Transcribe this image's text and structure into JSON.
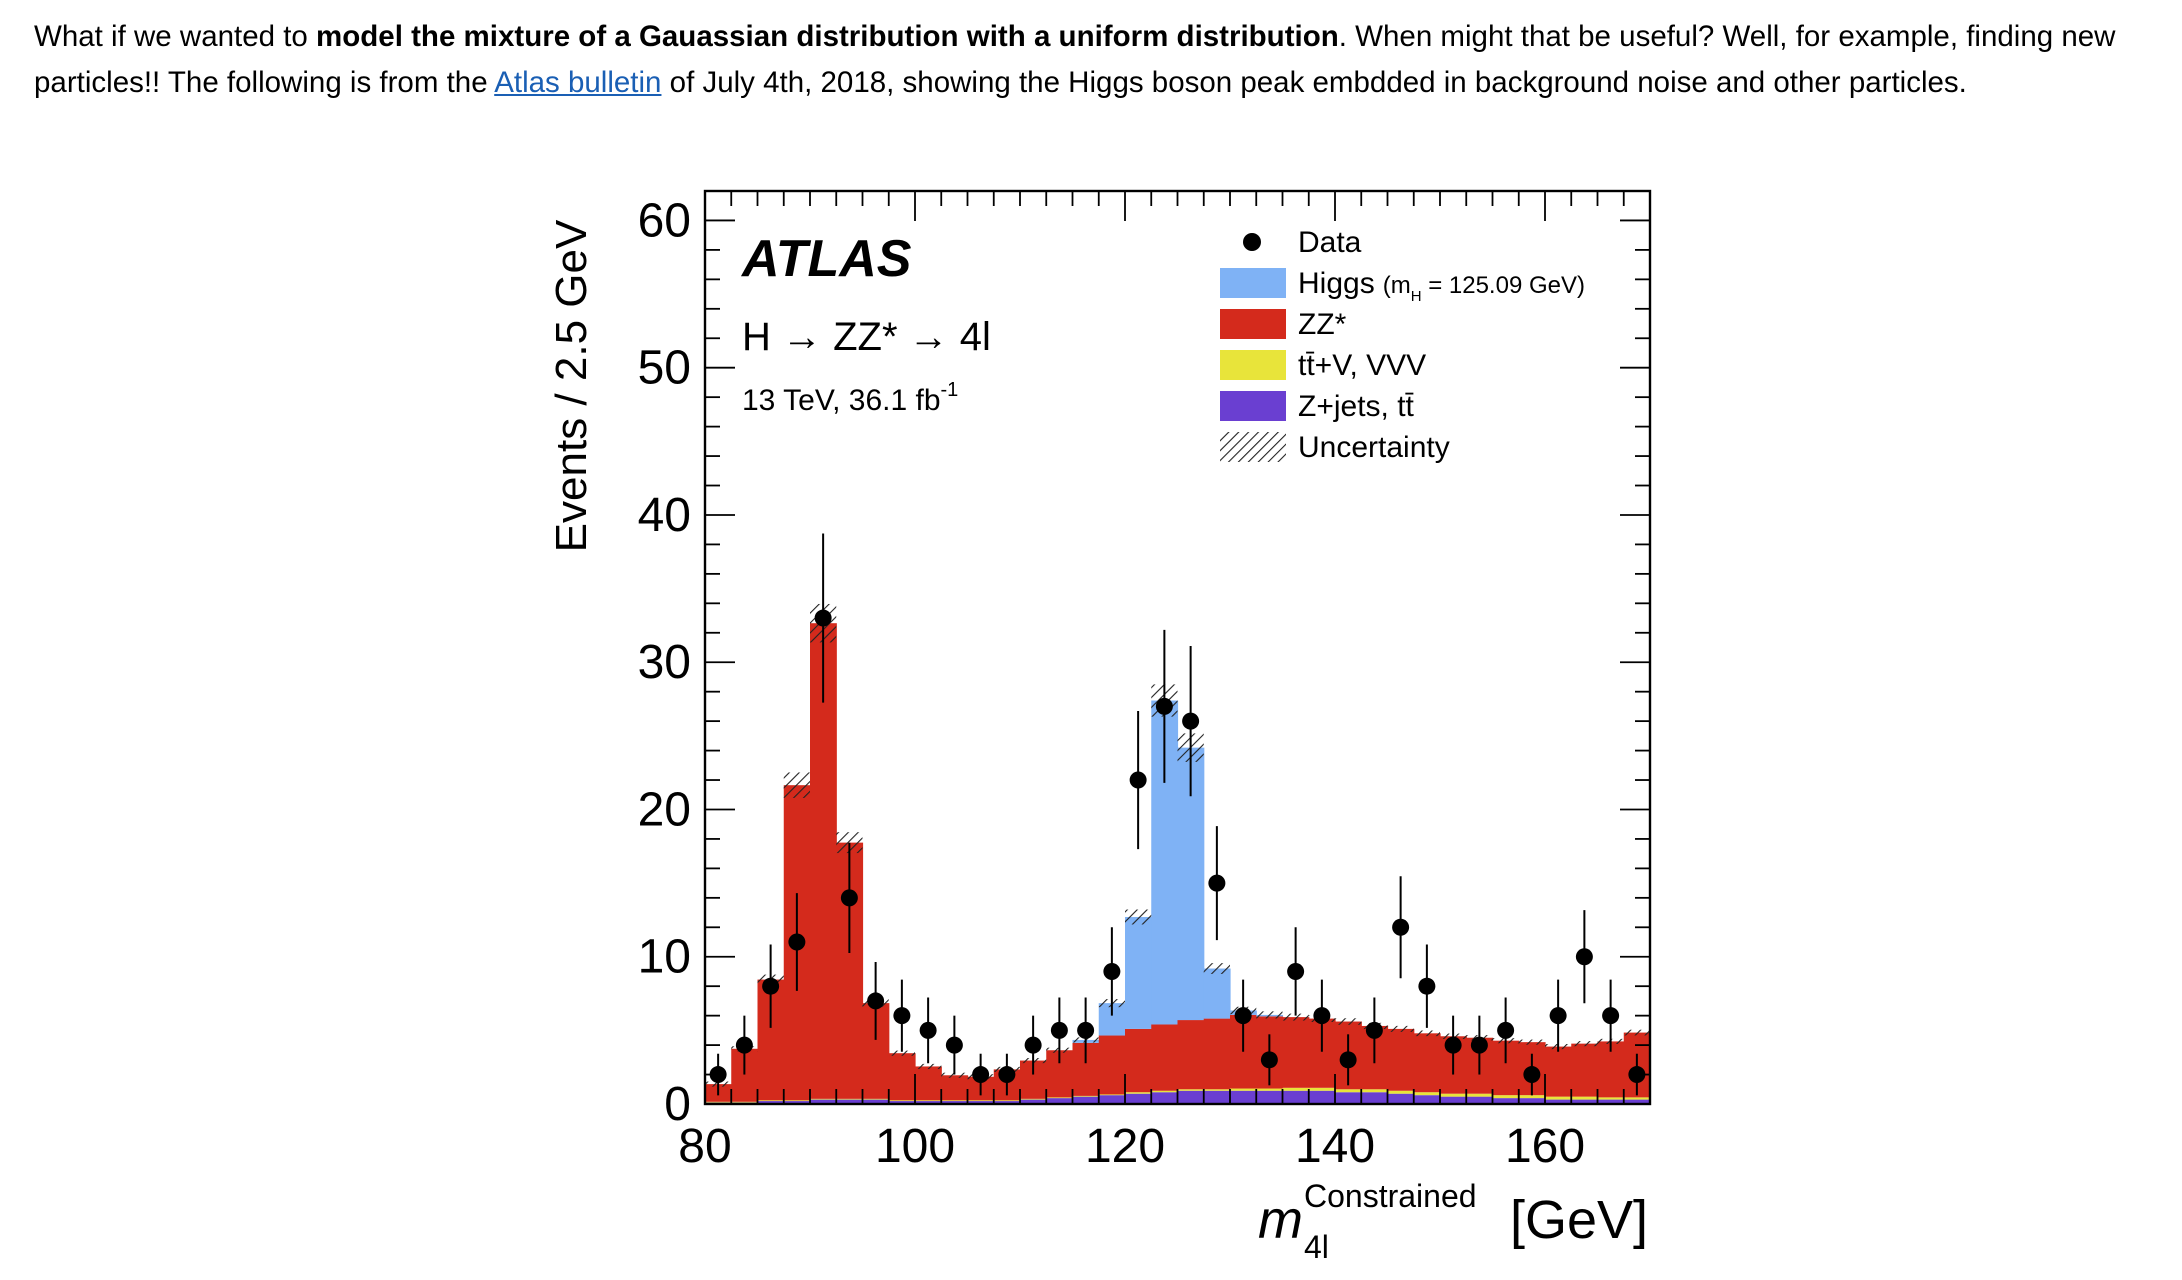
{
  "paragraph": {
    "t1": "What if we wanted to ",
    "bold": "model the mixture of a Gauassian distribution with a uniform distribution",
    "t2": ". When might that be useful? Well, for example, finding new particles!! The following is from the ",
    "link": "Atlas bulletin",
    "t3": " of July 4th, 2018, showing the Higgs boson peak embdded in background noise and other particles."
  },
  "chart_data": {
    "type": "bar",
    "title": "ATLAS",
    "subtitle_process": "H → ZZ* → 4l",
    "subtitle_energy": "13 TeV, 36.1 fb",
    "subtitle_energy_sup": "-1",
    "xlabel_main": "m",
    "xlabel_sup": "Constrained",
    "xlabel_sub": "4l",
    "xlabel_unit": "[GeV]",
    "ylabel": "Events / 2.5 GeV",
    "xlim": [
      80,
      170
    ],
    "ylim": [
      0,
      62
    ],
    "x_ticks": [
      80,
      100,
      120,
      140,
      160
    ],
    "y_ticks": [
      0,
      10,
      20,
      30,
      40,
      50,
      60
    ],
    "bin_width": 2.5,
    "bin_starts": [
      80,
      82.5,
      85,
      87.5,
      90,
      92.5,
      95,
      97.5,
      100,
      102.5,
      105,
      107.5,
      110,
      112.5,
      115,
      117.5,
      120,
      122.5,
      125,
      127.5,
      130,
      132.5,
      135,
      137.5,
      140,
      142.5,
      145,
      147.5,
      150,
      152.5,
      155,
      157.5,
      160,
      162.5,
      165,
      167.5
    ],
    "legend": {
      "position": "top-right",
      "data": "Data",
      "higgs": "Higgs",
      "higgs_mass_m": "(m",
      "higgs_mass_sub": "H",
      "higgs_mass_value": " = 125.09 GeV)",
      "zz": "ZZ*",
      "ttv": "tt̄+V, VVV",
      "zjets": "Z+jets, tt̄",
      "uncertainty": "Uncertainty"
    },
    "colors": {
      "higgs": "#7fb2f5",
      "zz": "#d42a1c",
      "ttv": "#e8e43a",
      "zjets": "#6a3fd1",
      "data": "#000000"
    },
    "stacks": {
      "zjets": [
        0.1,
        0.1,
        0.2,
        0.2,
        0.3,
        0.3,
        0.3,
        0.2,
        0.2,
        0.2,
        0.2,
        0.2,
        0.3,
        0.4,
        0.5,
        0.6,
        0.7,
        0.8,
        0.9,
        0.9,
        0.9,
        0.9,
        0.9,
        0.9,
        0.8,
        0.8,
        0.7,
        0.6,
        0.5,
        0.5,
        0.4,
        0.4,
        0.3,
        0.3,
        0.3,
        0.3
      ],
      "ttv": [
        0.05,
        0.05,
        0.05,
        0.05,
        0.05,
        0.05,
        0.05,
        0.05,
        0.05,
        0.05,
        0.05,
        0.05,
        0.05,
        0.05,
        0.05,
        0.05,
        0.1,
        0.1,
        0.1,
        0.1,
        0.15,
        0.15,
        0.2,
        0.2,
        0.2,
        0.2,
        0.2,
        0.2,
        0.2,
        0.2,
        0.2,
        0.2,
        0.2,
        0.2,
        0.15,
        0.15
      ],
      "zz": [
        1.2,
        3.6,
        8.2,
        21.4,
        32.3,
        17.4,
        6.5,
        3.2,
        2.3,
        1.7,
        1.6,
        2.1,
        2.6,
        3.2,
        3.6,
        4.0,
        4.3,
        4.5,
        4.7,
        4.8,
        5.0,
        4.9,
        4.8,
        4.7,
        4.6,
        4.3,
        4.2,
        4.0,
        3.9,
        3.8,
        3.7,
        3.6,
        3.4,
        3.6,
        3.8,
        4.4
      ],
      "higgs": [
        0,
        0,
        0,
        0,
        0,
        0,
        0,
        0,
        0,
        0,
        0,
        0,
        0,
        0,
        0.2,
        2.2,
        7.6,
        22.0,
        18.5,
        3.4,
        0.3,
        0.1,
        0,
        0,
        0,
        0,
        0,
        0,
        0,
        0,
        0,
        0,
        0,
        0,
        0,
        0
      ]
    },
    "data_points": {
      "x": [
        81.25,
        83.75,
        86.25,
        88.75,
        91.25,
        93.75,
        96.25,
        98.75,
        101.25,
        103.75,
        106.25,
        108.75,
        111.25,
        113.75,
        116.25,
        118.75,
        121.25,
        123.75,
        126.25,
        128.75,
        131.25,
        133.75,
        136.25,
        138.75,
        141.25,
        143.75,
        146.25,
        148.75,
        151.25,
        153.75,
        156.25,
        158.75,
        161.25,
        163.75,
        166.25,
        168.75
      ],
      "y": [
        2,
        4,
        8,
        11,
        33,
        14,
        7,
        6,
        5,
        4,
        2,
        2,
        4,
        5,
        5,
        9,
        22,
        27,
        26,
        15,
        6,
        3,
        9,
        6,
        3,
        5,
        12,
        8,
        4,
        4,
        5,
        2,
        6,
        10,
        6,
        2
      ]
    }
  }
}
